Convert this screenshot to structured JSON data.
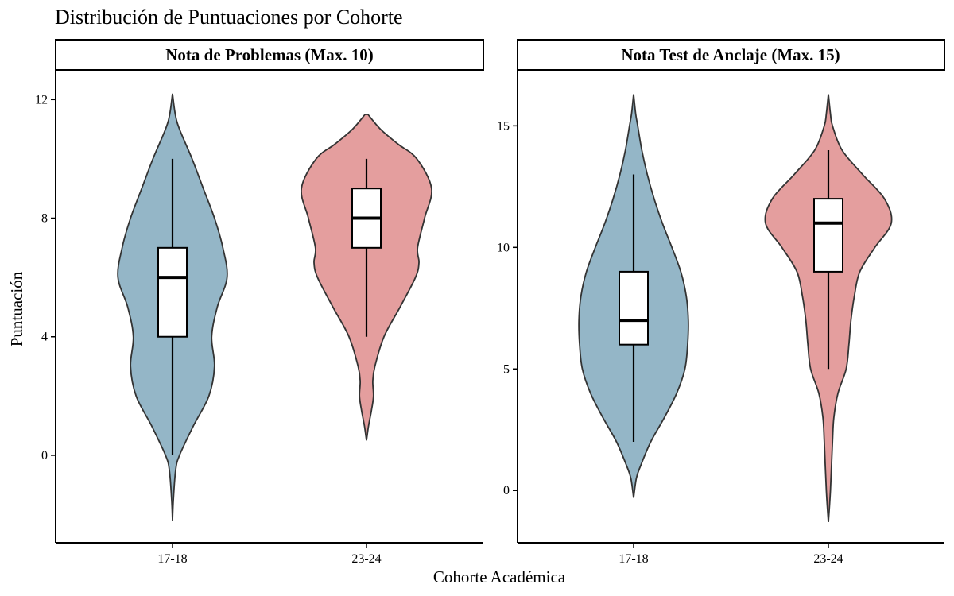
{
  "title": "Distribución de Puntuaciones por Cohorte",
  "xlabel": "Cohorte Académica",
  "ylabel": "Puntuación",
  "colors": {
    "17-18": "#94b6c7",
    "23-24": "#e49e9e",
    "outline": "#333333",
    "box": "#ffffff"
  },
  "chart_data": [
    {
      "type": "violin",
      "panel_title": "Nota de Problemas (Max. 10)",
      "categories": [
        "17-18",
        "23-24"
      ],
      "ylim": [
        -2.95,
        13
      ],
      "yticks": [
        0,
        4,
        8,
        12
      ],
      "violins": [
        {
          "group": "17-18",
          "density_y": [
            -2.2,
            -1.5,
            -0.5,
            0,
            1,
            2,
            3,
            4,
            5,
            6,
            7,
            8,
            9,
            10,
            11,
            11.5,
            12.2
          ],
          "density_half_width": [
            0,
            0.012,
            0.045,
            0.1,
            0.3,
            0.52,
            0.6,
            0.56,
            0.64,
            0.78,
            0.72,
            0.6,
            0.44,
            0.28,
            0.1,
            0.04,
            0
          ],
          "box": {
            "min": 0,
            "q1": 4,
            "median": 6,
            "q3": 7,
            "max": 10
          }
        },
        {
          "group": "23-24",
          "density_y": [
            0.5,
            1,
            1.5,
            2,
            2.5,
            3,
            4,
            5,
            6,
            6.5,
            7,
            8,
            9,
            10,
            10.5,
            11,
            11.5
          ],
          "density_half_width": [
            0,
            0.03,
            0.07,
            0.1,
            0.09,
            0.12,
            0.25,
            0.48,
            0.7,
            0.75,
            0.73,
            0.83,
            0.93,
            0.72,
            0.45,
            0.2,
            0.02
          ],
          "box": {
            "min": 4,
            "q1": 7,
            "median": 8,
            "q3": 9,
            "max": 10
          }
        }
      ]
    },
    {
      "type": "violin",
      "panel_title": "Nota Test de Anclaje (Max. 15)",
      "categories": [
        "17-18",
        "23-24"
      ],
      "ylim": [
        -2.15,
        17.3
      ],
      "yticks": [
        0,
        5,
        10,
        15
      ],
      "violins": [
        {
          "group": "17-18",
          "density_y": [
            -0.3,
            0.5,
            1,
            2,
            3,
            4,
            5,
            6,
            7,
            8,
            9,
            10,
            11,
            12,
            13,
            14,
            15,
            15.5,
            16.3
          ],
          "density_half_width": [
            0,
            0.04,
            0.1,
            0.25,
            0.45,
            0.63,
            0.75,
            0.79,
            0.8,
            0.77,
            0.69,
            0.56,
            0.42,
            0.3,
            0.2,
            0.12,
            0.06,
            0.03,
            0
          ],
          "box": {
            "min": 2,
            "q1": 6,
            "median": 7,
            "q3": 9,
            "max": 13
          }
        },
        {
          "group": "23-24",
          "density_y": [
            -1.3,
            0,
            2,
            3,
            4,
            5,
            6,
            7,
            8,
            9,
            10,
            11,
            12,
            13,
            14,
            15,
            15.5,
            16.3
          ],
          "density_half_width": [
            0,
            0.03,
            0.06,
            0.08,
            0.14,
            0.26,
            0.3,
            0.33,
            0.38,
            0.46,
            0.68,
            0.92,
            0.82,
            0.5,
            0.2,
            0.06,
            0.03,
            0
          ],
          "box": {
            "min": 5,
            "q1": 9,
            "median": 11,
            "q3": 12,
            "max": 14
          }
        }
      ]
    }
  ]
}
